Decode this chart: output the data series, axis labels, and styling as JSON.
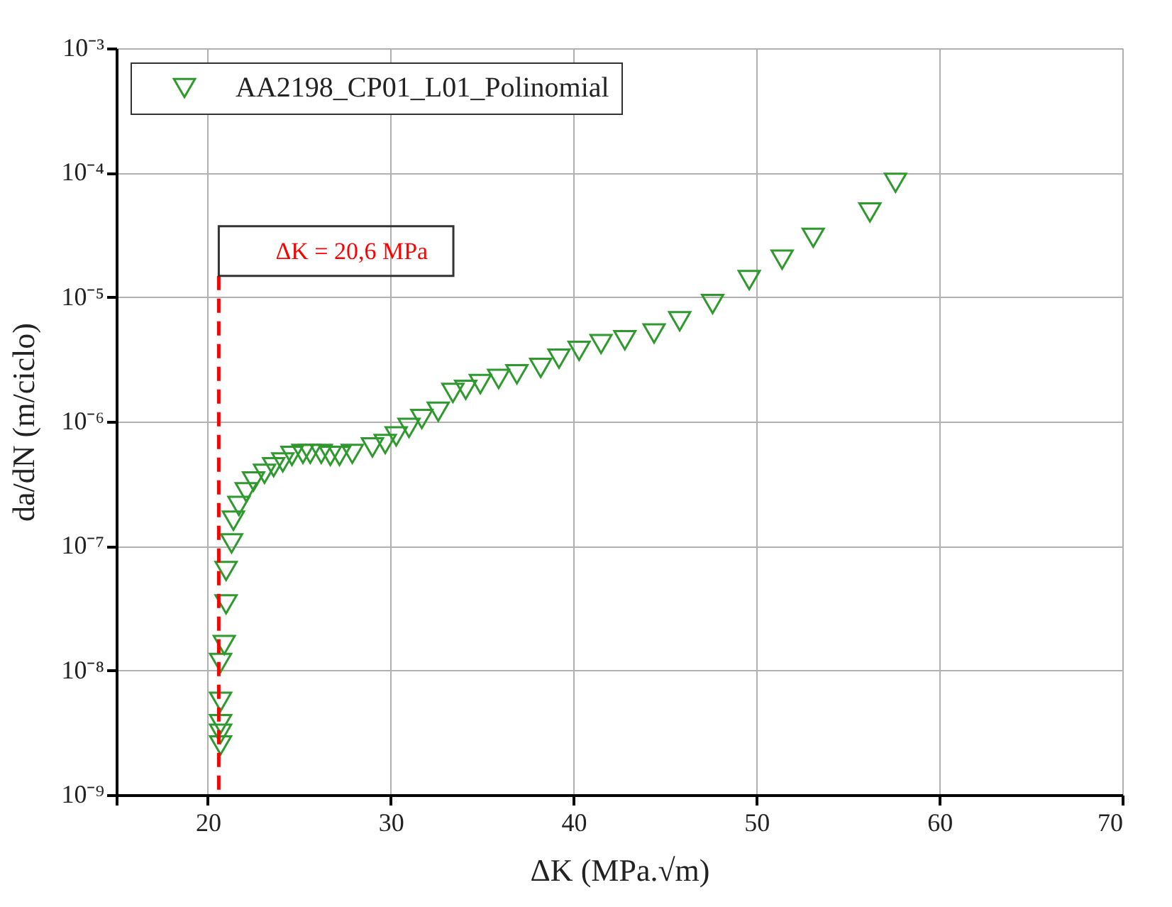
{
  "chart_data": {
    "type": "scatter",
    "xlabel": "ΔK (MPa.√m)",
    "ylabel": "da/dN (m/ciclo)",
    "log": "y",
    "grid": true,
    "legend": "top left",
    "marker": "triangle",
    "xlim": [
      15,
      70
    ],
    "xticks": [
      {
        "value": 15,
        "label": null
      },
      20,
      30,
      40,
      50,
      60,
      70
    ],
    "ylim": [
      1e-09,
      0.001
    ],
    "yticks": [
      {
        "value": 1e-09,
        "label": "10⁻⁹"
      },
      {
        "value": 1e-08,
        "label": "10⁻⁸"
      },
      {
        "value": 1e-07,
        "label": "10⁻⁷"
      },
      {
        "value": 1e-06,
        "label": "10⁻⁶"
      },
      {
        "value": 1e-05,
        "label": "10⁻⁵"
      },
      {
        "value": 0.0001,
        "label": "10⁻⁴"
      },
      {
        "value": 0.001,
        "label": "10⁻³"
      }
    ],
    "ref_lines": [
      {
        "axis": "x",
        "value": 20.6,
        "label": "ΔK = 20,6 MPa",
        "color": "#ff0000",
        "line_style": "dashed"
      }
    ],
    "series": [
      {
        "name": "AA2198_CP01_L01_Polinomial",
        "color": "#2e9a2e",
        "x": [
          20.7,
          20.7,
          20.7,
          20.7,
          20.7,
          20.9,
          21.0,
          21.0,
          21.3,
          21.4,
          21.7,
          22.1,
          22.5,
          23.1,
          23.6,
          24.1,
          24.6,
          25.2,
          25.6,
          26.2,
          26.7,
          27.2,
          27.9,
          29.0,
          29.7,
          30.3,
          31.0,
          31.7,
          32.6,
          33.4,
          34.1,
          34.9,
          35.9,
          36.9,
          38.2,
          39.2,
          40.3,
          41.5,
          42.8,
          44.4,
          45.8,
          47.6,
          49.6,
          51.4,
          53.1,
          56.2,
          57.6
        ],
        "values": [
          3.1e-09,
          3.7e-09,
          2.5e-09,
          5.6e-09,
          1.15e-08,
          1.6e-08,
          3.4e-08,
          6.3e-08,
          1.05e-07,
          1.6e-07,
          2.1e-07,
          2.7e-07,
          3.3e-07,
          3.8e-07,
          4.3e-07,
          4.7e-07,
          5.3e-07,
          5.5e-07,
          5.5e-07,
          5.5e-07,
          5.3e-07,
          5.3e-07,
          5.5e-07,
          6.2e-07,
          6.6e-07,
          7.6e-07,
          8.9e-07,
          1.05e-06,
          1.2e-06,
          1.7e-06,
          1.8e-06,
          2e-06,
          2.2e-06,
          2.4e-06,
          2.7e-06,
          3.2e-06,
          3.7e-06,
          4.2e-06,
          4.5e-06,
          5.1e-06,
          6.4e-06,
          8.8e-06,
          1.37e-05,
          2e-05,
          3e-05,
          4.8e-05,
          8.3e-05
        ]
      }
    ]
  }
}
